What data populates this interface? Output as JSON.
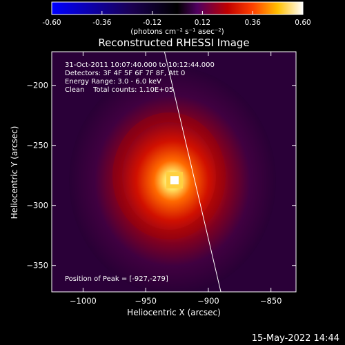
{
  "title": "Reconstructed RHESSI Image",
  "colorbar": {
    "tick_labels": [
      "-0.60",
      "-0.36",
      "-0.12",
      "0.12",
      "0.36",
      "0.60"
    ],
    "unit_label": "(photons cm⁻² s⁻¹ asec⁻²)",
    "range": [
      -0.6,
      0.6
    ]
  },
  "info": {
    "time": "31-Oct-2011 10:07:40.000 to 10:12:44.000",
    "detectors": "Detectors: 3F 4F 5F 6F 7F 8F, Att 0",
    "energy": "Energy Range: 3.0 - 6.0 keV",
    "clean": "Clean    Total counts: 1.10E+05"
  },
  "peak_label": "Position of Peak = [-927,-279]",
  "axes": {
    "xlabel": "Heliocentric X (arcsec)",
    "ylabel": "Heliocentric Y (arcsec)",
    "xrange": [
      -1025,
      -830
    ],
    "yrange": [
      -372,
      -172
    ],
    "xticks": [
      {
        "value": -1000,
        "label": "−1000"
      },
      {
        "value": -950,
        "label": "−950"
      },
      {
        "value": -900,
        "label": "−900"
      },
      {
        "value": -850,
        "label": "−850"
      }
    ],
    "yticks": [
      {
        "value": -200,
        "label": "−200"
      },
      {
        "value": -250,
        "label": "−250"
      },
      {
        "value": -300,
        "label": "−300"
      },
      {
        "value": -350,
        "label": "−350"
      }
    ]
  },
  "peak": {
    "x": -927,
    "y": -279
  },
  "limb_line": [
    {
      "x": -935,
      "y": -172
    },
    {
      "x": -890,
      "y": -372
    }
  ],
  "timestamp": "15-May-2022 14:44"
}
